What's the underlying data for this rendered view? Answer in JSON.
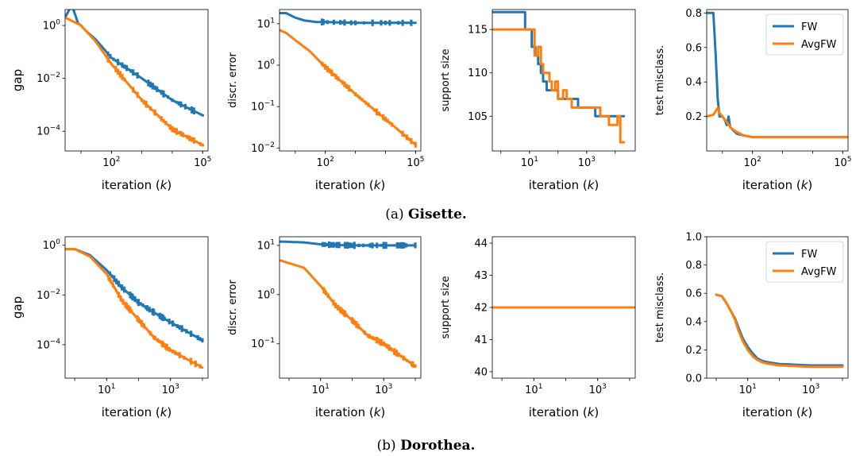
{
  "colors": {
    "fw": "#1f77b4",
    "avgfw": "#ff7f0e"
  },
  "captions": {
    "a_prefix": "(a) ",
    "a_name": "Gisette.",
    "b_prefix": "(b) ",
    "b_name": "Dorothea."
  },
  "chart_data": [
    {
      "id": "gisette-gap",
      "type": "line",
      "xlabel": "iteration (k)",
      "ylabel": "gap",
      "xscale": "log",
      "yscale": "log",
      "xlim": [
        3,
        150000
      ],
      "ylim": [
        1.8e-05,
        4
      ],
      "xticks": [
        {
          "v": 100,
          "b": "10",
          "e": "2"
        },
        {
          "v": 100000,
          "b": "10",
          "e": "5"
        }
      ],
      "yticks": [
        {
          "v": 1,
          "b": "10",
          "e": "0"
        },
        {
          "v": 0.01,
          "b": "10",
          "e": "−2"
        },
        {
          "v": 0.0001,
          "b": "10",
          "e": "−4"
        }
      ],
      "legend": false,
      "series": [
        {
          "name": "FW",
          "x": [
            3,
            5,
            8,
            10,
            15,
            20,
            30,
            100,
            1000,
            10000,
            100000
          ],
          "y": [
            2.0,
            6.0,
            1.2,
            1.0,
            0.6,
            0.45,
            0.3,
            0.06,
            0.01,
            0.0015,
            0.0004
          ]
        },
        {
          "name": "AvgFW",
          "x": [
            3,
            10,
            30,
            100,
            1000,
            10000,
            100000
          ],
          "y": [
            2.0,
            1.0,
            0.25,
            0.035,
            0.0015,
            0.00012,
            3e-05
          ]
        }
      ]
    },
    {
      "id": "gisette-discr",
      "type": "line",
      "xlabel": "iteration (k)",
      "ylabel": "discr. error",
      "xscale": "log",
      "yscale": "log",
      "xlim": [
        3,
        150000
      ],
      "ylim": [
        0.0085,
        22
      ],
      "xticks": [
        {
          "v": 100,
          "b": "10",
          "e": "2"
        },
        {
          "v": 100000,
          "b": "10",
          "e": "5"
        }
      ],
      "yticks": [
        {
          "v": 10,
          "b": "10",
          "e": "1"
        },
        {
          "v": 1,
          "b": "10",
          "e": "0"
        },
        {
          "v": 0.1,
          "b": "10",
          "e": "−1"
        },
        {
          "v": 0.01,
          "b": "10",
          "e": "−2"
        }
      ],
      "legend": false,
      "series": [
        {
          "name": "FW",
          "x": [
            3,
            5,
            10,
            20,
            50,
            100,
            1000,
            100000
          ],
          "y": [
            18,
            18,
            14,
            12,
            11,
            11,
            10.5,
            10.5
          ]
        },
        {
          "name": "AvgFW",
          "x": [
            3,
            5,
            10,
            30,
            100,
            1000,
            10000,
            100000
          ],
          "y": [
            7,
            6,
            4,
            2.2,
            0.9,
            0.2,
            0.05,
            0.012
          ]
        }
      ]
    },
    {
      "id": "gisette-support",
      "type": "line",
      "xlabel": "iteration (k)",
      "ylabel": "support size",
      "xscale": "log",
      "yscale": "linear",
      "xlim": [
        0.5,
        50000
      ],
      "ylim": [
        101,
        117.3
      ],
      "xticks": [
        {
          "v": 10,
          "b": "10",
          "e": "1"
        },
        {
          "v": 1000,
          "b": "10",
          "e": "3"
        }
      ],
      "yticks": [
        {
          "v": 105,
          "t": "105"
        },
        {
          "v": 110,
          "t": "110"
        },
        {
          "v": 115,
          "t": "115"
        }
      ],
      "legend": false,
      "step": true,
      "series": [
        {
          "name": "FW",
          "x": [
            0.5,
            7,
            12,
            16,
            20,
            25,
            30,
            40,
            60,
            100,
            200,
            300,
            500,
            1000,
            2000,
            7000,
            20000
          ],
          "y": [
            117,
            115,
            113,
            112,
            111,
            110,
            109,
            108,
            108,
            107,
            107,
            107,
            106,
            106,
            105,
            105,
            105
          ]
        },
        {
          "name": "AvgFW",
          "x": [
            0.5,
            9,
            15,
            20,
            25,
            30,
            40,
            50,
            60,
            80,
            100,
            150,
            200,
            300,
            500,
            1000,
            1500,
            3000,
            6000,
            12000,
            15000,
            20000
          ],
          "y": [
            115,
            115,
            112,
            113,
            111,
            110,
            110,
            109,
            108,
            109,
            107,
            108,
            107,
            106,
            106,
            106,
            106,
            105,
            104,
            105,
            102,
            102
          ]
        }
      ]
    },
    {
      "id": "gisette-test",
      "type": "line",
      "xlabel": "iteration (k)",
      "ylabel": "test misclass.",
      "xscale": "log",
      "yscale": "linear",
      "xlim": [
        3,
        150000
      ],
      "ylim": [
        0,
        0.82
      ],
      "xticks": [
        {
          "v": 100,
          "b": "10",
          "e": "2"
        },
        {
          "v": 100000,
          "b": "10",
          "e": "5"
        }
      ],
      "yticks": [
        {
          "v": 0.2,
          "t": "0.2"
        },
        {
          "v": 0.4,
          "t": "0.4"
        },
        {
          "v": 0.6,
          "t": "0.6"
        },
        {
          "v": 0.8,
          "t": "0.8"
        }
      ],
      "legend": true,
      "legend_loc": "upper right",
      "series": [
        {
          "name": "FW",
          "x": [
            3,
            4,
            5,
            6,
            7,
            8,
            10,
            12,
            14,
            16,
            18,
            20,
            30,
            50,
            100,
            1000,
            10000,
            150000
          ],
          "y": [
            0.8,
            0.8,
            0.8,
            0.55,
            0.3,
            0.2,
            0.2,
            0.18,
            0.15,
            0.2,
            0.14,
            0.13,
            0.1,
            0.09,
            0.08,
            0.08,
            0.08,
            0.08
          ]
        },
        {
          "name": "AvgFW",
          "x": [
            3,
            5,
            7,
            8,
            10,
            15,
            20,
            30,
            50,
            100,
            1000,
            10000,
            150000
          ],
          "y": [
            0.2,
            0.21,
            0.25,
            0.22,
            0.2,
            0.16,
            0.13,
            0.11,
            0.09,
            0.08,
            0.08,
            0.08,
            0.08
          ]
        }
      ]
    },
    {
      "id": "dorothea-gap",
      "type": "line",
      "xlabel": "iteration (k)",
      "ylabel": "gap",
      "xscale": "log",
      "yscale": "log",
      "xlim": [
        0.5,
        15000
      ],
      "ylim": [
        4.5e-06,
        2.2
      ],
      "xticks": [
        {
          "v": 10,
          "b": "10",
          "e": "1"
        },
        {
          "v": 1000,
          "b": "10",
          "e": "3"
        }
      ],
      "yticks": [
        {
          "v": 1,
          "b": "10",
          "e": "0"
        },
        {
          "v": 0.01,
          "b": "10",
          "e": "−2"
        },
        {
          "v": 0.0001,
          "b": "10",
          "e": "−4"
        }
      ],
      "legend": false,
      "series": [
        {
          "name": "FW",
          "x": [
            0.5,
            1,
            3,
            10,
            30,
            100,
            300,
            1000,
            10000
          ],
          "y": [
            0.7,
            0.7,
            0.4,
            0.1,
            0.02,
            0.005,
            0.002,
            0.0008,
            0.00015
          ]
        },
        {
          "name": "AvgFW",
          "x": [
            0.5,
            1,
            3,
            10,
            30,
            100,
            300,
            1000,
            10000
          ],
          "y": [
            0.7,
            0.7,
            0.35,
            0.07,
            0.006,
            0.001,
            0.0002,
            6e-05,
            1.2e-05
          ]
        }
      ]
    },
    {
      "id": "dorothea-discr",
      "type": "line",
      "xlabel": "iteration (k)",
      "ylabel": "discr. error",
      "xscale": "log",
      "yscale": "log",
      "xlim": [
        0.5,
        15000
      ],
      "ylim": [
        0.02,
        15
      ],
      "xticks": [
        {
          "v": 10,
          "b": "10",
          "e": "1"
        },
        {
          "v": 1000,
          "b": "10",
          "e": "3"
        }
      ],
      "yticks": [
        {
          "v": 10,
          "b": "10",
          "e": "1"
        },
        {
          "v": 1,
          "b": "10",
          "e": "0"
        },
        {
          "v": 0.1,
          "b": "10",
          "e": "−1"
        }
      ],
      "legend": false,
      "series": [
        {
          "name": "FW",
          "x": [
            0.5,
            3,
            10,
            30,
            100,
            1000,
            10000
          ],
          "y": [
            12,
            11.5,
            10.5,
            10.2,
            10,
            10,
            10
          ]
        },
        {
          "name": "AvgFW",
          "x": [
            0.5,
            3,
            10,
            30,
            100,
            300,
            1000,
            3000,
            10000
          ],
          "y": [
            5,
            3.5,
            1.5,
            0.6,
            0.3,
            0.15,
            0.1,
            0.06,
            0.035
          ]
        }
      ]
    },
    {
      "id": "dorothea-support",
      "type": "line",
      "xlabel": "iteration (k)",
      "ylabel": "support size",
      "xscale": "log",
      "yscale": "linear",
      "xlim": [
        0.5,
        15000
      ],
      "ylim": [
        39.8,
        44.2
      ],
      "xticks": [
        {
          "v": 10,
          "b": "10",
          "e": "1"
        },
        {
          "v": 1000,
          "b": "10",
          "e": "3"
        }
      ],
      "yticks": [
        {
          "v": 40,
          "t": "40"
        },
        {
          "v": 41,
          "t": "41"
        },
        {
          "v": 42,
          "t": "42"
        },
        {
          "v": 43,
          "t": "43"
        },
        {
          "v": 44,
          "t": "44"
        }
      ],
      "legend": false,
      "series": [
        {
          "name": "FW",
          "x": [
            0.5,
            15000
          ],
          "y": [
            42,
            42
          ]
        },
        {
          "name": "AvgFW",
          "x": [
            0.5,
            15000
          ],
          "y": [
            42,
            42
          ]
        }
      ]
    },
    {
      "id": "dorothea-test",
      "type": "line",
      "xlabel": "iteration (k)",
      "ylabel": "test misclass.",
      "xscale": "log",
      "yscale": "linear",
      "xlim": [
        0.5,
        15000
      ],
      "ylim": [
        0,
        1.0
      ],
      "xticks": [
        {
          "v": 10,
          "b": "10",
          "e": "1"
        },
        {
          "v": 1000,
          "b": "10",
          "e": "3"
        }
      ],
      "yticks": [
        {
          "v": 0,
          "t": "0.0"
        },
        {
          "v": 0.2,
          "t": "0.2"
        },
        {
          "v": 0.4,
          "t": "0.4"
        },
        {
          "v": 0.6,
          "t": "0.6"
        },
        {
          "v": 0.8,
          "t": "0.8"
        },
        {
          "v": 1.0,
          "t": "1.0"
        }
      ],
      "legend": true,
      "legend_loc": "upper right",
      "series": [
        {
          "name": "FW",
          "x": [
            1,
            1.5,
            2,
            3,
            4,
            5,
            7,
            10,
            15,
            20,
            30,
            50,
            100,
            1000,
            10000
          ],
          "y": [
            0.59,
            0.58,
            0.54,
            0.47,
            0.42,
            0.36,
            0.28,
            0.22,
            0.17,
            0.14,
            0.12,
            0.11,
            0.1,
            0.09,
            0.09
          ]
        },
        {
          "name": "AvgFW",
          "x": [
            1,
            1.5,
            2,
            3,
            4,
            5,
            7,
            10,
            15,
            20,
            30,
            50,
            100,
            1000,
            10000
          ],
          "y": [
            0.59,
            0.58,
            0.54,
            0.47,
            0.41,
            0.34,
            0.26,
            0.2,
            0.15,
            0.13,
            0.11,
            0.1,
            0.09,
            0.08,
            0.08
          ]
        }
      ]
    }
  ]
}
